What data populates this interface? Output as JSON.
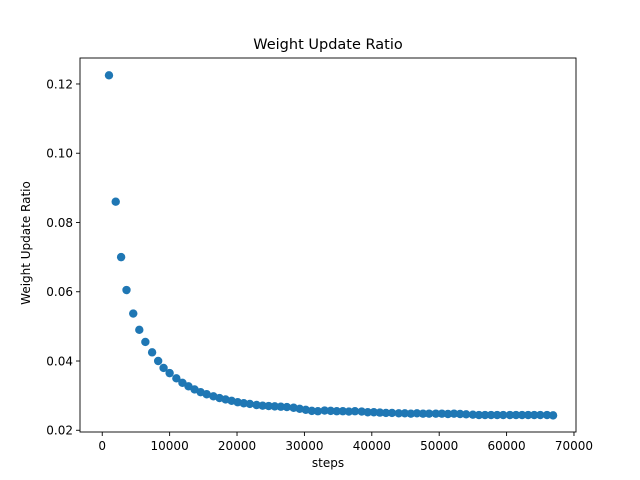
{
  "chart_data": {
    "type": "scatter",
    "title": "Weight Update Ratio",
    "xlabel": "steps",
    "ylabel": "Weight Update Ratio",
    "xlim": [
      -3300,
      70300
    ],
    "ylim": [
      0.0195,
      0.1275
    ],
    "xticks": [
      0,
      10000,
      20000,
      30000,
      40000,
      50000,
      60000,
      70000
    ],
    "xtick_labels": [
      "0",
      "10000",
      "20000",
      "30000",
      "40000",
      "50000",
      "60000",
      "70000"
    ],
    "yticks": [
      0.02,
      0.04,
      0.06,
      0.08,
      0.1,
      0.12
    ],
    "ytick_labels": [
      "0.02",
      "0.04",
      "0.06",
      "0.08",
      "0.10",
      "0.12"
    ],
    "grid": false,
    "legend": "none",
    "marker_color": "#1f77b4",
    "series": [
      {
        "x": [
          1000,
          2000,
          2800,
          3600,
          4600,
          5500,
          6400,
          7400,
          8300,
          9100,
          10000,
          11000,
          11900,
          12800,
          13700,
          14600,
          15500,
          16500,
          17400,
          18300,
          19200,
          20100,
          21000,
          21900,
          22900,
          23800,
          24700,
          25600,
          26500,
          27400,
          28400,
          29300,
          30200,
          31100,
          32000,
          33000,
          33900,
          34800,
          35700,
          36600,
          37500,
          38500,
          39400,
          40300,
          41200,
          42100,
          43000,
          44000,
          44900,
          45800,
          46700,
          47600,
          48500,
          49500,
          50400,
          51300,
          52200,
          53100,
          54000,
          55000,
          55900,
          56800,
          57700,
          58600,
          59500,
          60500,
          61400,
          62300,
          63200,
          64100,
          65000,
          66000,
          66900
        ],
        "y": [
          0.1225,
          0.086,
          0.07,
          0.0605,
          0.0537,
          0.049,
          0.0455,
          0.0425,
          0.04,
          0.038,
          0.0365,
          0.035,
          0.0337,
          0.0327,
          0.0318,
          0.031,
          0.0304,
          0.0298,
          0.0293,
          0.0289,
          0.0285,
          0.0281,
          0.0278,
          0.0276,
          0.0273,
          0.0271,
          0.027,
          0.0269,
          0.0268,
          0.0267,
          0.0265,
          0.0262,
          0.0259,
          0.0256,
          0.0255,
          0.0257,
          0.0256,
          0.0255,
          0.0255,
          0.0254,
          0.0255,
          0.0254,
          0.0252,
          0.0252,
          0.0251,
          0.025,
          0.025,
          0.0249,
          0.0249,
          0.0248,
          0.0249,
          0.0248,
          0.0248,
          0.0248,
          0.0248,
          0.0247,
          0.0248,
          0.0247,
          0.0246,
          0.0245,
          0.0244,
          0.0244,
          0.0244,
          0.0244,
          0.0244,
          0.0244,
          0.0244,
          0.0244,
          0.0244,
          0.0244,
          0.0244,
          0.0244,
          0.0243
        ]
      }
    ]
  }
}
